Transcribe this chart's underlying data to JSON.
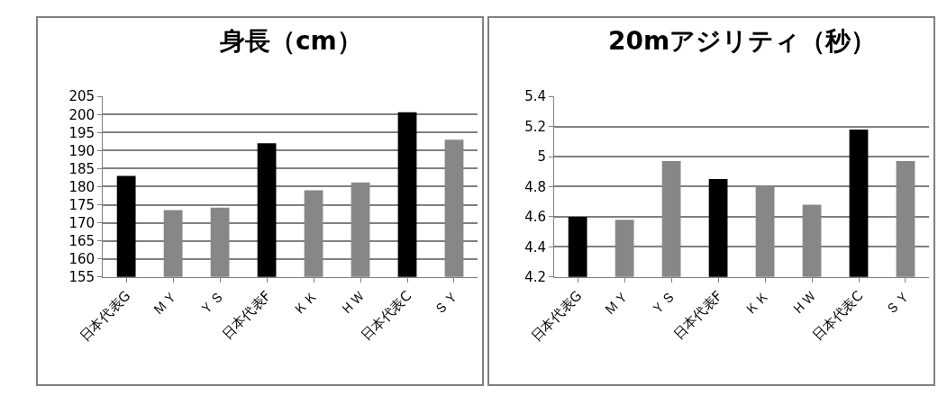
{
  "chart_data": [
    {
      "type": "bar",
      "title": "身長（cm）",
      "categories": [
        "日本代表G",
        "ＭＹ",
        "ＹＳ",
        "日本代表F",
        "ＫＫ",
        "ＨＷ",
        "日本代表C",
        "ＳＹ"
      ],
      "values": [
        183,
        173.5,
        174.2,
        192,
        179,
        181.2,
        200.6,
        193
      ],
      "colors": [
        "#000000",
        "#878787",
        "#878787",
        "#000000",
        "#878787",
        "#878787",
        "#000000",
        "#878787"
      ],
      "ylim": [
        155,
        205
      ],
      "yticks": [
        155,
        160,
        165,
        170,
        175,
        180,
        185,
        190,
        195,
        200,
        205
      ],
      "grid": "y"
    },
    {
      "type": "bar",
      "title": "20mアジリティ（秒）",
      "categories": [
        "日本代表G",
        "ＭＹ",
        "ＹＳ",
        "日本代表F",
        "ＫＫ",
        "ＨＷ",
        "日本代表C",
        "ＳＹ"
      ],
      "values": [
        4.6,
        4.58,
        4.97,
        4.85,
        4.8,
        4.68,
        5.18,
        4.97
      ],
      "colors": [
        "#000000",
        "#878787",
        "#878787",
        "#000000",
        "#878787",
        "#878787",
        "#000000",
        "#878787"
      ],
      "ylim": [
        4.2,
        5.4
      ],
      "yticks": [
        4.2,
        4.4,
        4.6,
        4.8,
        5,
        5.2,
        5.4
      ],
      "grid": "y"
    }
  ]
}
